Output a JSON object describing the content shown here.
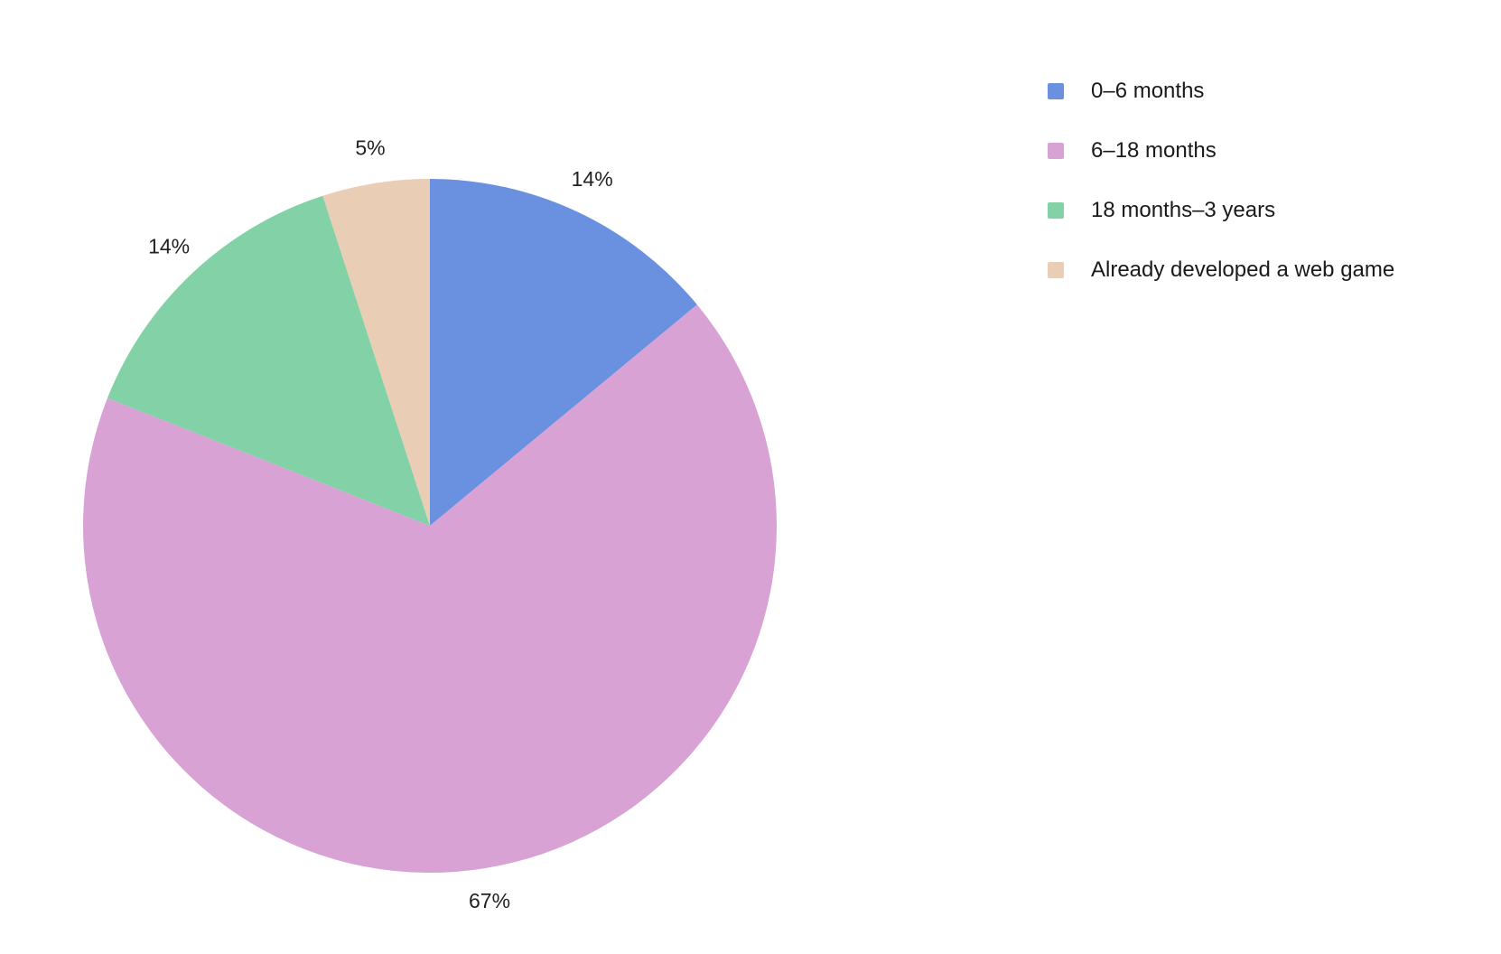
{
  "chart_data": {
    "type": "pie",
    "title": "",
    "legend_position": "top-right",
    "start_angle_deg": 0,
    "direction": "clockwise",
    "slices": [
      {
        "name": "0–6 months",
        "value": 14,
        "label": "14%",
        "color": "#6991E0"
      },
      {
        "name": "6–18 months",
        "value": 67,
        "label": "67%",
        "color": "#D9A2D4"
      },
      {
        "name": "18 months–3 years",
        "value": 14,
        "label": "14%",
        "color": "#82D1A7"
      },
      {
        "name": "Already developed a web game",
        "value": 5,
        "label": "5%",
        "color": "#EACDB5"
      }
    ]
  }
}
